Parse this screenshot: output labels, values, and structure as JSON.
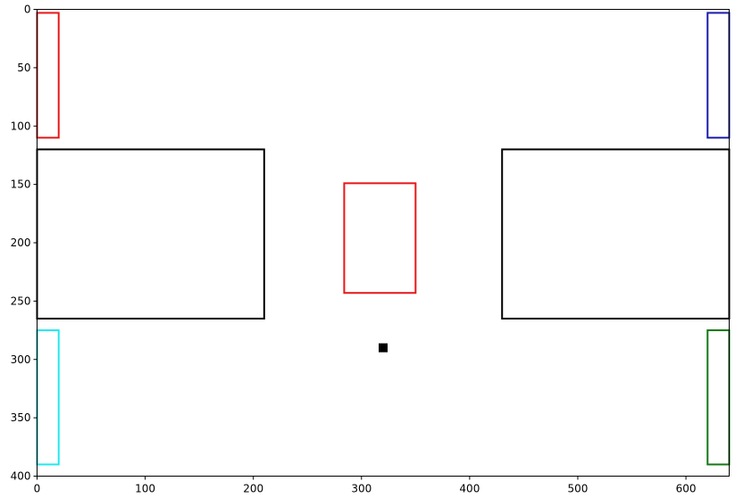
{
  "chart_data": {
    "type": "scatter",
    "title": "",
    "xlabel": "",
    "ylabel": "",
    "xlim": [
      0,
      640
    ],
    "ylim": [
      400,
      0
    ],
    "y_inverted": true,
    "grid": false,
    "x_ticks": [
      0,
      100,
      200,
      300,
      400,
      500,
      600
    ],
    "y_ticks": [
      0,
      50,
      100,
      150,
      200,
      250,
      300,
      350,
      400
    ],
    "rectangles": [
      {
        "x0": 0,
        "y0": 3,
        "x1": 20,
        "y1": 110,
        "color": "#e8171a"
      },
      {
        "x0": 620,
        "y0": 3,
        "x1": 640,
        "y1": 110,
        "color": "#1a1aae"
      },
      {
        "x0": 0,
        "y0": 120,
        "x1": 210,
        "y1": 265,
        "color": "#000000"
      },
      {
        "x0": 430,
        "y0": 120,
        "x1": 640,
        "y1": 265,
        "color": "#000000"
      },
      {
        "x0": 284,
        "y0": 149,
        "x1": 350,
        "y1": 243,
        "color": "#e8171a"
      },
      {
        "x0": 0,
        "y0": 275,
        "x1": 20,
        "y1": 390,
        "color": "#22e8ee"
      },
      {
        "x0": 620,
        "y0": 275,
        "x1": 640,
        "y1": 390,
        "color": "#147814"
      }
    ],
    "points": [
      {
        "x": 320,
        "y": 290,
        "marker": "square",
        "color": "#000000"
      }
    ]
  }
}
